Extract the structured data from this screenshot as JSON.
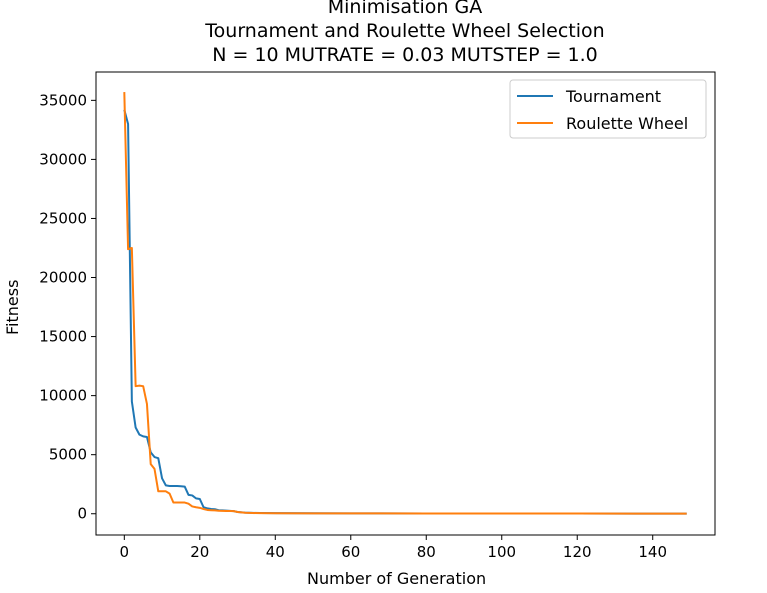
{
  "chart_data": {
    "type": "line",
    "title_lines": [
      "Minimisation GA",
      "Tournament and Roulette Wheel Selection",
      "N = 10 MUTRATE = 0.03 MUTSTEP = 1.0"
    ],
    "xlabel": "Number of Generation",
    "ylabel": "Fitness",
    "xlim": [
      -7.5,
      156.5
    ],
    "ylim": [
      -1800,
      37400
    ],
    "xticks": [
      0,
      20,
      40,
      60,
      80,
      100,
      120,
      140
    ],
    "yticks": [
      0,
      5000,
      10000,
      15000,
      20000,
      25000,
      30000,
      35000
    ],
    "legend_position": "upper right",
    "grid": false,
    "series": [
      {
        "name": "Tournament",
        "color": "#1f77b4",
        "points": [
          [
            0,
            34200
          ],
          [
            1,
            33000
          ],
          [
            2,
            9500
          ],
          [
            3,
            7300
          ],
          [
            4,
            6700
          ],
          [
            5,
            6550
          ],
          [
            6,
            6500
          ],
          [
            7,
            5200
          ],
          [
            8,
            4800
          ],
          [
            9,
            4700
          ],
          [
            10,
            3000
          ],
          [
            11,
            2400
          ],
          [
            12,
            2350
          ],
          [
            13,
            2350
          ],
          [
            14,
            2350
          ],
          [
            15,
            2330
          ],
          [
            16,
            2300
          ],
          [
            17,
            1600
          ],
          [
            18,
            1550
          ],
          [
            19,
            1300
          ],
          [
            20,
            1250
          ],
          [
            21,
            550
          ],
          [
            22,
            450
          ],
          [
            23,
            400
          ],
          [
            24,
            380
          ],
          [
            25,
            300
          ],
          [
            26,
            280
          ],
          [
            27,
            260
          ],
          [
            28,
            240
          ],
          [
            29,
            220
          ],
          [
            30,
            150
          ],
          [
            32,
            90
          ],
          [
            34,
            70
          ],
          [
            36,
            60
          ],
          [
            40,
            50
          ],
          [
            50,
            40
          ],
          [
            60,
            30
          ],
          [
            80,
            25
          ],
          [
            100,
            20
          ],
          [
            120,
            15
          ],
          [
            149,
            10
          ]
        ]
      },
      {
        "name": "Roulette Wheel",
        "color": "#ff7f0e",
        "points": [
          [
            0,
            35700
          ],
          [
            1,
            22400
          ],
          [
            2,
            22500
          ],
          [
            3,
            10800
          ],
          [
            4,
            10850
          ],
          [
            5,
            10800
          ],
          [
            6,
            9300
          ],
          [
            7,
            4200
          ],
          [
            8,
            3800
          ],
          [
            9,
            1900
          ],
          [
            10,
            1900
          ],
          [
            11,
            1900
          ],
          [
            12,
            1700
          ],
          [
            13,
            950
          ],
          [
            14,
            950
          ],
          [
            15,
            950
          ],
          [
            16,
            950
          ],
          [
            17,
            850
          ],
          [
            18,
            620
          ],
          [
            19,
            550
          ],
          [
            20,
            500
          ],
          [
            21,
            400
          ],
          [
            22,
            320
          ],
          [
            23,
            300
          ],
          [
            24,
            280
          ],
          [
            25,
            250
          ],
          [
            26,
            240
          ],
          [
            27,
            230
          ],
          [
            28,
            230
          ],
          [
            29,
            220
          ],
          [
            30,
            150
          ],
          [
            32,
            80
          ],
          [
            34,
            60
          ],
          [
            36,
            50
          ],
          [
            40,
            40
          ],
          [
            50,
            35
          ],
          [
            60,
            30
          ],
          [
            80,
            25
          ],
          [
            100,
            20
          ],
          [
            120,
            15
          ],
          [
            149,
            10
          ]
        ]
      }
    ]
  }
}
